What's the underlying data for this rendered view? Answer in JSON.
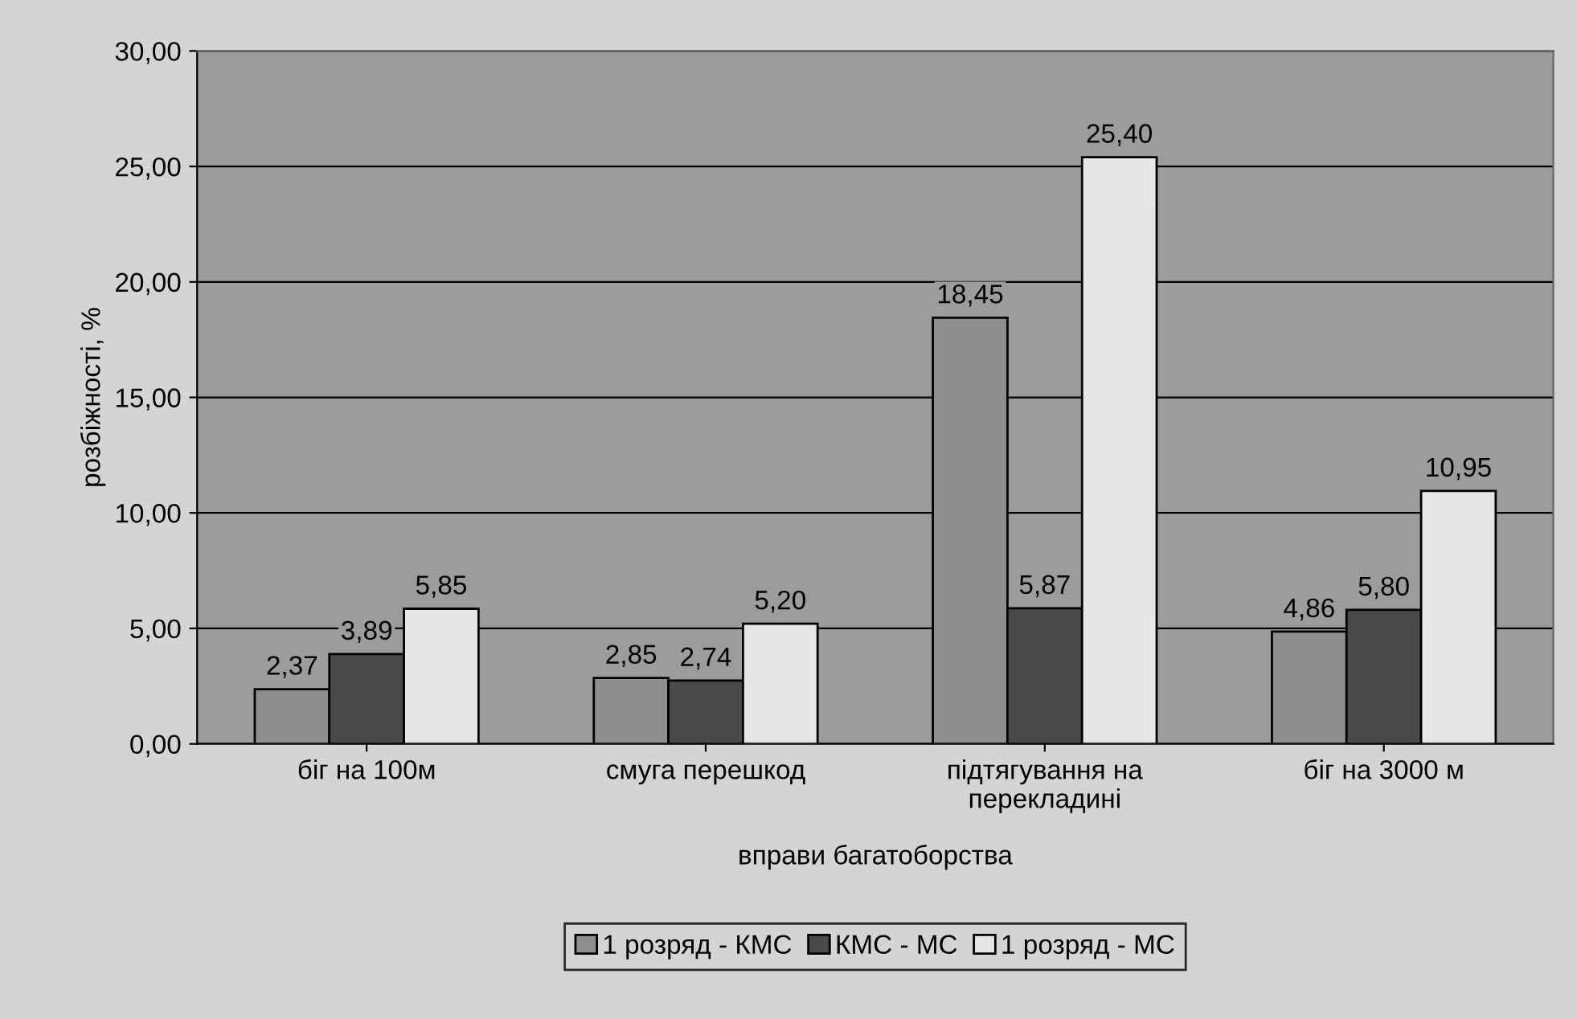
{
  "chart_data": {
    "type": "bar",
    "xlabel": "вправи багатоборства",
    "ylabel": "розбіжності, %",
    "categories": [
      "біг на 100м",
      "смуга перешкод",
      "підтягування на\nперекладині",
      "біг на 3000 м"
    ],
    "series": [
      {
        "name": "1 розряд - КМС",
        "color": "#8e8e8e",
        "values": [
          2.37,
          2.85,
          18.45,
          4.86
        ],
        "value_labels": [
          "2,37",
          "2,85",
          "18,45",
          "4,86"
        ]
      },
      {
        "name": "КМС - МС",
        "color": "#4a4a4a",
        "values": [
          3.89,
          2.74,
          5.87,
          5.8
        ],
        "value_labels": [
          "3,89",
          "2,74",
          "5,87",
          "5,80"
        ]
      },
      {
        "name": "1 розряд - МС",
        "color": "#e6e6e6",
        "values": [
          5.85,
          5.2,
          25.4,
          10.95
        ],
        "value_labels": [
          "5,85",
          "5,20",
          "25,40",
          "10,95"
        ]
      }
    ],
    "ylim": [
      0,
      30
    ],
    "yticks": [
      {
        "value": 0,
        "label": "0,00"
      },
      {
        "value": 5,
        "label": "5,00"
      },
      {
        "value": 10,
        "label": "10,00"
      },
      {
        "value": 15,
        "label": "15,00"
      },
      {
        "value": 20,
        "label": "20,00"
      },
      {
        "value": 25,
        "label": "25,00"
      },
      {
        "value": 30,
        "label": "30,00"
      }
    ],
    "grid": "y",
    "legend": "bottom"
  }
}
